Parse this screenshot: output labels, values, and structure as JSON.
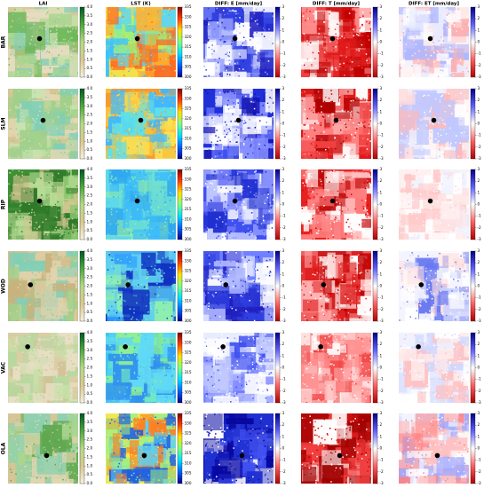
{
  "columns": [
    {
      "title": "LAI",
      "colorbar": {
        "colors": [
          "#f5f0dc",
          "#d9c892",
          "#b5d98a",
          "#4fa83f",
          "#005a24"
        ],
        "lim": [
          0,
          4
        ],
        "ticks": [
          {
            "value": 0,
            "label": "0.0"
          },
          0.5,
          {
            "value": 1,
            "label": "1.0"
          },
          1.5,
          {
            "value": 2,
            "label": "2.0"
          },
          2.5,
          {
            "value": 3,
            "label": "3.0"
          },
          3.5,
          {
            "value": 4,
            "label": "4.0"
          }
        ]
      }
    },
    {
      "title": "LST (K)",
      "colorbar": {
        "colors": [
          "#00008f",
          "#0060ff",
          "#00e0ff",
          "#80ff80",
          "#ffe000",
          "#ff4000",
          "#800000"
        ],
        "lim": [
          300,
          335
        ],
        "ticks": [
          300,
          305,
          310,
          315,
          320,
          325,
          330,
          335
        ]
      }
    },
    {
      "title": "DIFF: E [mm/day]",
      "colorbar": {
        "colors": [
          "#b40000",
          "#ff6060",
          "#ffffff",
          "#6060ff",
          "#00008c"
        ],
        "lim": [
          -3,
          3
        ],
        "ticks": [
          -3,
          -2,
          -1,
          0,
          1,
          2,
          3
        ]
      }
    },
    {
      "title": "DIFF: T [mm/day]",
      "colorbar": {
        "colors": [
          "#b40000",
          "#ff6060",
          "#ffffff",
          "#6060ff",
          "#00008c"
        ],
        "lim": [
          -3,
          3
        ],
        "ticks": [
          -3,
          -2,
          -1,
          0,
          1,
          2,
          3
        ]
      }
    },
    {
      "title": "DIFF: ET [mm/day]",
      "colorbar": {
        "colors": [
          "#b40000",
          "#ff6060",
          "#ffffff",
          "#6060ff",
          "#00008c"
        ],
        "lim": [
          -3,
          3
        ],
        "ticks": [
          -3,
          -2,
          -1,
          0,
          1,
          2,
          3
        ]
      }
    }
  ],
  "rows": [
    "BAR",
    "SLM",
    "RIP",
    "WOD",
    "VAC",
    "OLA"
  ]
}
